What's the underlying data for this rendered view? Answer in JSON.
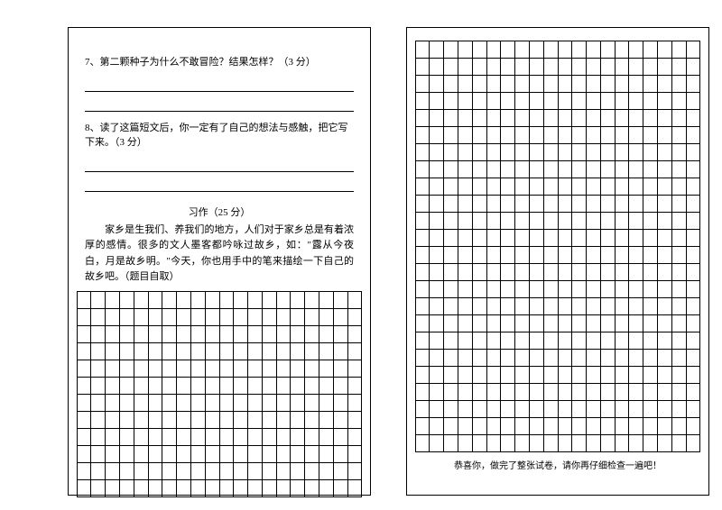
{
  "left": {
    "q7": "7、第二颗种子为什么不敢冒险？结果怎样？（3 分）",
    "q8": "8、读了这篇短文后，你一定有了自己的想法与感触，把它写下来。（3 分）",
    "essayTitle": "习作（25 分）",
    "essayIntro": "　　家乡是生我们、养我们的地方，人们对于家乡总是有着浓厚的感情。很多的文人墨客都吟咏过故乡，如：\"露从今夜白，月是故乡明。\"今天，你也用手中的笔来描绘一下自己的故乡吧。（题目自取）",
    "grid": {
      "rows": 12,
      "cols": 20,
      "cellW": 15.8,
      "cellH": 19
    }
  },
  "right": {
    "grid": {
      "rows": 24,
      "cols": 20,
      "cellW": 15.8,
      "cellH": 19
    },
    "footer": "恭喜你，做完了整张试卷，请你再仔细检查一遍吧！"
  },
  "colors": {
    "line": "#000000",
    "bg": "#ffffff"
  }
}
